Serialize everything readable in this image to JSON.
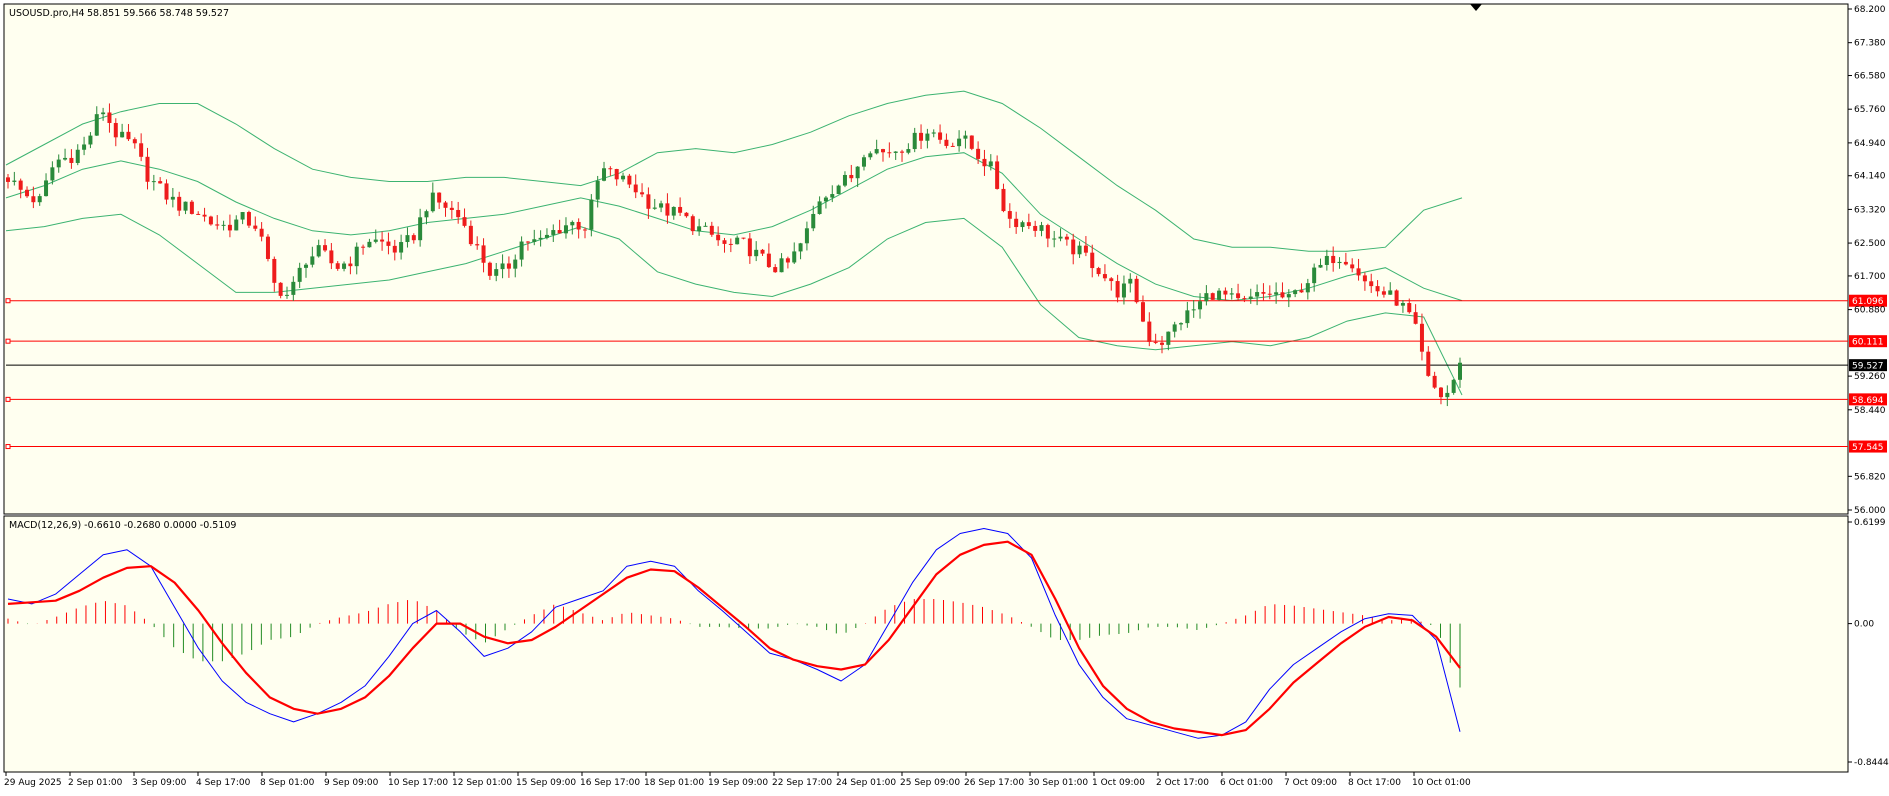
{
  "header": {
    "symbol_timeframe": "USOUSD.pro,H4",
    "ohlc": "58.851 59.566 58.748 59.527"
  },
  "macd_header": {
    "label": "MACD(12,26,9) -0.6610 -0.2680 0.0000 -0.5109"
  },
  "colors": {
    "background": "#fffff0",
    "bull_candle": "#2a8a3a",
    "bear_candle": "#ee1c1c",
    "bollinger": "#3cb371",
    "level_line": "#ff0000",
    "current_price_line": "#000000",
    "macd_main": "#0000ff",
    "macd_signal": "#ff0000",
    "hist_positive": "#ff0000",
    "hist_negative": "#228b22"
  },
  "chart_data": [
    {
      "type": "candlestick",
      "panel": "price",
      "price_axis_ticks": [
        "68.200",
        "67.380",
        "66.580",
        "65.760",
        "64.940",
        "64.140",
        "63.320",
        "62.500",
        "61.700",
        "60.880",
        "59.260",
        "58.440",
        "56.820",
        "56.000"
      ],
      "ylim": [
        56.0,
        68.2
      ],
      "horizontal_levels": [
        {
          "label": "61.096",
          "value": 61.096
        },
        {
          "label": "60.111",
          "value": 60.111
        },
        {
          "label": "58.694",
          "value": 58.694
        },
        {
          "label": "57.545",
          "value": 57.545
        }
      ],
      "current_price": {
        "label": "59.527",
        "value": 59.527
      },
      "x_tick_labels": [
        "29 Aug 2025",
        "2 Sep 01:00",
        "3 Sep 09:00",
        "4 Sep 17:00",
        "8 Sep 01:00",
        "9 Sep 09:00",
        "10 Sep 17:00",
        "12 Sep 01:00",
        "15 Sep 09:00",
        "16 Sep 17:00",
        "18 Sep 01:00",
        "19 Sep 09:00",
        "22 Sep 17:00",
        "24 Sep 01:00",
        "25 Sep 09:00",
        "26 Sep 17:00",
        "30 Sep 01:00",
        "1 Oct 09:00",
        "2 Oct 17:00",
        "6 Oct 01:00",
        "7 Oct 09:00",
        "8 Oct 17:00",
        "10 Oct 01:00"
      ],
      "close_path": [
        64.1,
        63.7,
        63.5,
        64.5,
        64.6,
        64.9,
        65.8,
        65.1,
        64.9,
        64.1,
        63.7,
        63.4,
        63.3,
        63.0,
        62.9,
        63.1,
        62.9,
        61.5,
        61.2,
        62.1,
        62.3,
        61.9,
        62.1,
        62.6,
        62.5,
        62.3,
        62.7,
        63.6,
        63.4,
        63.1,
        62.4,
        61.7,
        61.9,
        62.6,
        62.5,
        62.8,
        63.0,
        62.9,
        64.3,
        64.1,
        63.9,
        63.5,
        63.3,
        63.2,
        62.9,
        62.7,
        62.4,
        62.5,
        62.2,
        61.9,
        62.0,
        62.6,
        63.6,
        63.9,
        64.1,
        64.9,
        64.7,
        64.8,
        65.0,
        65.3,
        64.9,
        65.1,
        64.7,
        64.3,
        63.1,
        63.0,
        62.9,
        62.6,
        62.4,
        62.2,
        61.8,
        61.3,
        61.5,
        60.2,
        60.1,
        60.6,
        60.9,
        61.3,
        61.2,
        61.0,
        61.2,
        61.3,
        61.1,
        61.5,
        61.9,
        62.2,
        62.1,
        61.5,
        61.3,
        61.1,
        60.6,
        59.1,
        58.7,
        59.5
      ],
      "bollinger_upper": [
        64.4,
        64.9,
        65.4,
        65.7,
        65.9,
        65.9,
        65.4,
        64.8,
        64.3,
        64.1,
        64.0,
        64.0,
        64.1,
        64.1,
        64.0,
        63.9,
        64.2,
        64.7,
        64.8,
        64.7,
        64.9,
        65.2,
        65.6,
        65.9,
        66.1,
        66.2,
        65.9,
        65.3,
        64.6,
        63.9,
        63.3,
        62.6,
        62.4,
        62.4,
        62.3,
        62.3,
        62.4,
        63.3,
        63.6
      ],
      "bollinger_middle": [
        63.6,
        63.9,
        64.3,
        64.5,
        64.3,
        64.0,
        63.5,
        63.1,
        62.8,
        62.7,
        62.8,
        63.0,
        63.1,
        63.2,
        63.4,
        63.6,
        63.4,
        63.1,
        62.8,
        62.7,
        62.9,
        63.3,
        63.8,
        64.3,
        64.6,
        64.7,
        64.2,
        63.2,
        62.6,
        62.0,
        61.5,
        61.2,
        61.1,
        61.2,
        61.4,
        61.7,
        61.9,
        61.4,
        61.1
      ],
      "bollinger_lower": [
        62.8,
        62.9,
        63.1,
        63.2,
        62.7,
        62.0,
        61.3,
        61.3,
        61.4,
        61.5,
        61.6,
        61.8,
        62.0,
        62.3,
        62.6,
        62.9,
        62.6,
        61.8,
        61.5,
        61.3,
        61.2,
        61.5,
        61.9,
        62.6,
        63.0,
        63.1,
        62.4,
        61.0,
        60.2,
        60.0,
        59.9,
        60.0,
        60.1,
        60.0,
        60.2,
        60.6,
        60.8,
        60.7,
        58.8
      ]
    },
    {
      "type": "line",
      "panel": "macd",
      "ylim": [
        -0.8444,
        0.6199
      ],
      "y_tick_labels": [
        "0.6199",
        "0.00",
        "-0.8444"
      ],
      "series": [
        {
          "name": "MACD",
          "values": [
            0.15,
            0.12,
            0.18,
            0.3,
            0.42,
            0.45,
            0.35,
            0.1,
            -0.15,
            -0.35,
            -0.48,
            -0.55,
            -0.6,
            -0.55,
            -0.48,
            -0.38,
            -0.2,
            0.0,
            0.08,
            -0.05,
            -0.2,
            -0.15,
            -0.05,
            0.1,
            0.15,
            0.2,
            0.35,
            0.38,
            0.35,
            0.2,
            0.08,
            -0.05,
            -0.18,
            -0.22,
            -0.28,
            -0.35,
            -0.25,
            0.0,
            0.25,
            0.45,
            0.55,
            0.58,
            0.55,
            0.4,
            0.05,
            -0.25,
            -0.45,
            -0.58,
            -0.62,
            -0.66,
            -0.7,
            -0.68,
            -0.6,
            -0.4,
            -0.25,
            -0.15,
            -0.05,
            0.03,
            0.06,
            0.05,
            -0.1,
            -0.66
          ]
        },
        {
          "name": "Signal",
          "values": [
            0.12,
            0.13,
            0.14,
            0.2,
            0.28,
            0.34,
            0.35,
            0.25,
            0.08,
            -0.12,
            -0.3,
            -0.45,
            -0.52,
            -0.55,
            -0.52,
            -0.45,
            -0.32,
            -0.15,
            0.0,
            0.0,
            -0.08,
            -0.12,
            -0.1,
            -0.02,
            0.08,
            0.18,
            0.28,
            0.33,
            0.32,
            0.22,
            0.1,
            -0.02,
            -0.15,
            -0.22,
            -0.26,
            -0.28,
            -0.25,
            -0.1,
            0.1,
            0.3,
            0.42,
            0.48,
            0.5,
            0.42,
            0.15,
            -0.15,
            -0.38,
            -0.52,
            -0.6,
            -0.64,
            -0.66,
            -0.68,
            -0.65,
            -0.52,
            -0.36,
            -0.24,
            -0.12,
            -0.02,
            0.04,
            0.02,
            -0.08,
            -0.27
          ]
        },
        {
          "name": "Histogram",
          "values": [
            0.03,
            -0.01,
            0.04,
            0.1,
            0.14,
            0.11,
            0.0,
            -0.15,
            -0.23,
            -0.23,
            -0.18,
            -0.1,
            -0.08,
            0.0,
            0.04,
            0.07,
            0.12,
            0.15,
            0.08,
            -0.05,
            -0.12,
            -0.03,
            0.05,
            0.12,
            0.07,
            0.02,
            0.07,
            0.05,
            0.03,
            -0.02,
            -0.02,
            -0.03,
            -0.03,
            0.0,
            -0.02,
            -0.07,
            0.0,
            0.1,
            0.15,
            0.15,
            0.13,
            0.1,
            0.05,
            -0.02,
            -0.1,
            -0.1,
            -0.07,
            -0.06,
            -0.02,
            -0.02,
            -0.04,
            0.0,
            0.05,
            0.12,
            0.11,
            0.09,
            0.07,
            0.05,
            0.02,
            0.03,
            -0.02,
            -0.39
          ]
        }
      ]
    }
  ]
}
